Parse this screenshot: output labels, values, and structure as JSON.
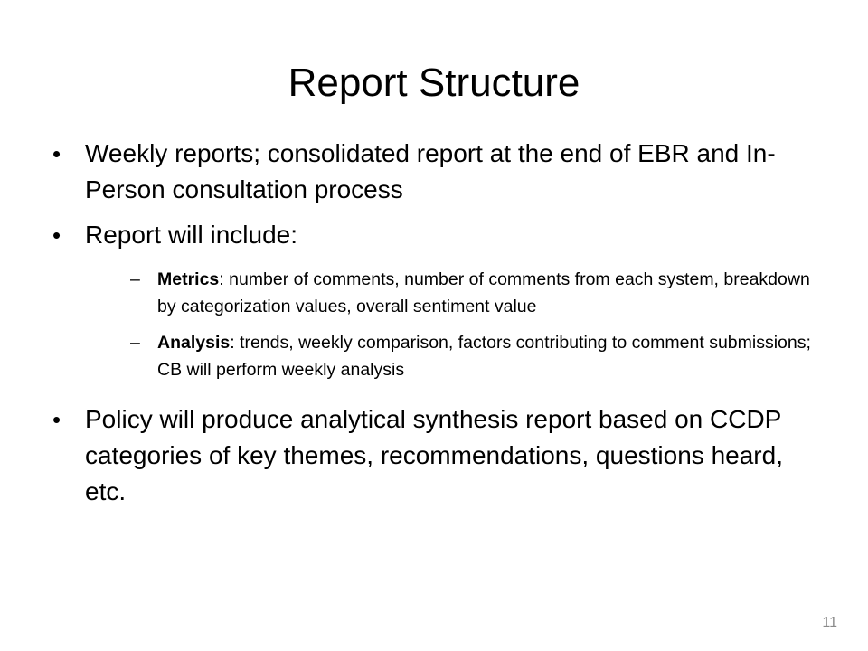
{
  "slide": {
    "title": "Report Structure",
    "bullets": [
      {
        "marker": "•",
        "text": "Weekly reports; consolidated report at the end of EBR and In-Person consultation process"
      },
      {
        "marker": "•",
        "text": "Report will include:"
      },
      {
        "marker": "•",
        "text": "Policy will produce analytical synthesis report based on CCDP categories of key themes, recommendations, questions heard, etc."
      }
    ],
    "subbullets": [
      {
        "marker": "–",
        "label": "Metrics",
        "text": ": number of comments, number of comments from each system, breakdown by categorization values, overall sentiment value"
      },
      {
        "marker": "–",
        "label": "Analysis",
        "text": ": trends, weekly comparison, factors contributing to comment submissions; CB will perform weekly analysis"
      }
    ],
    "page_number": "11"
  }
}
